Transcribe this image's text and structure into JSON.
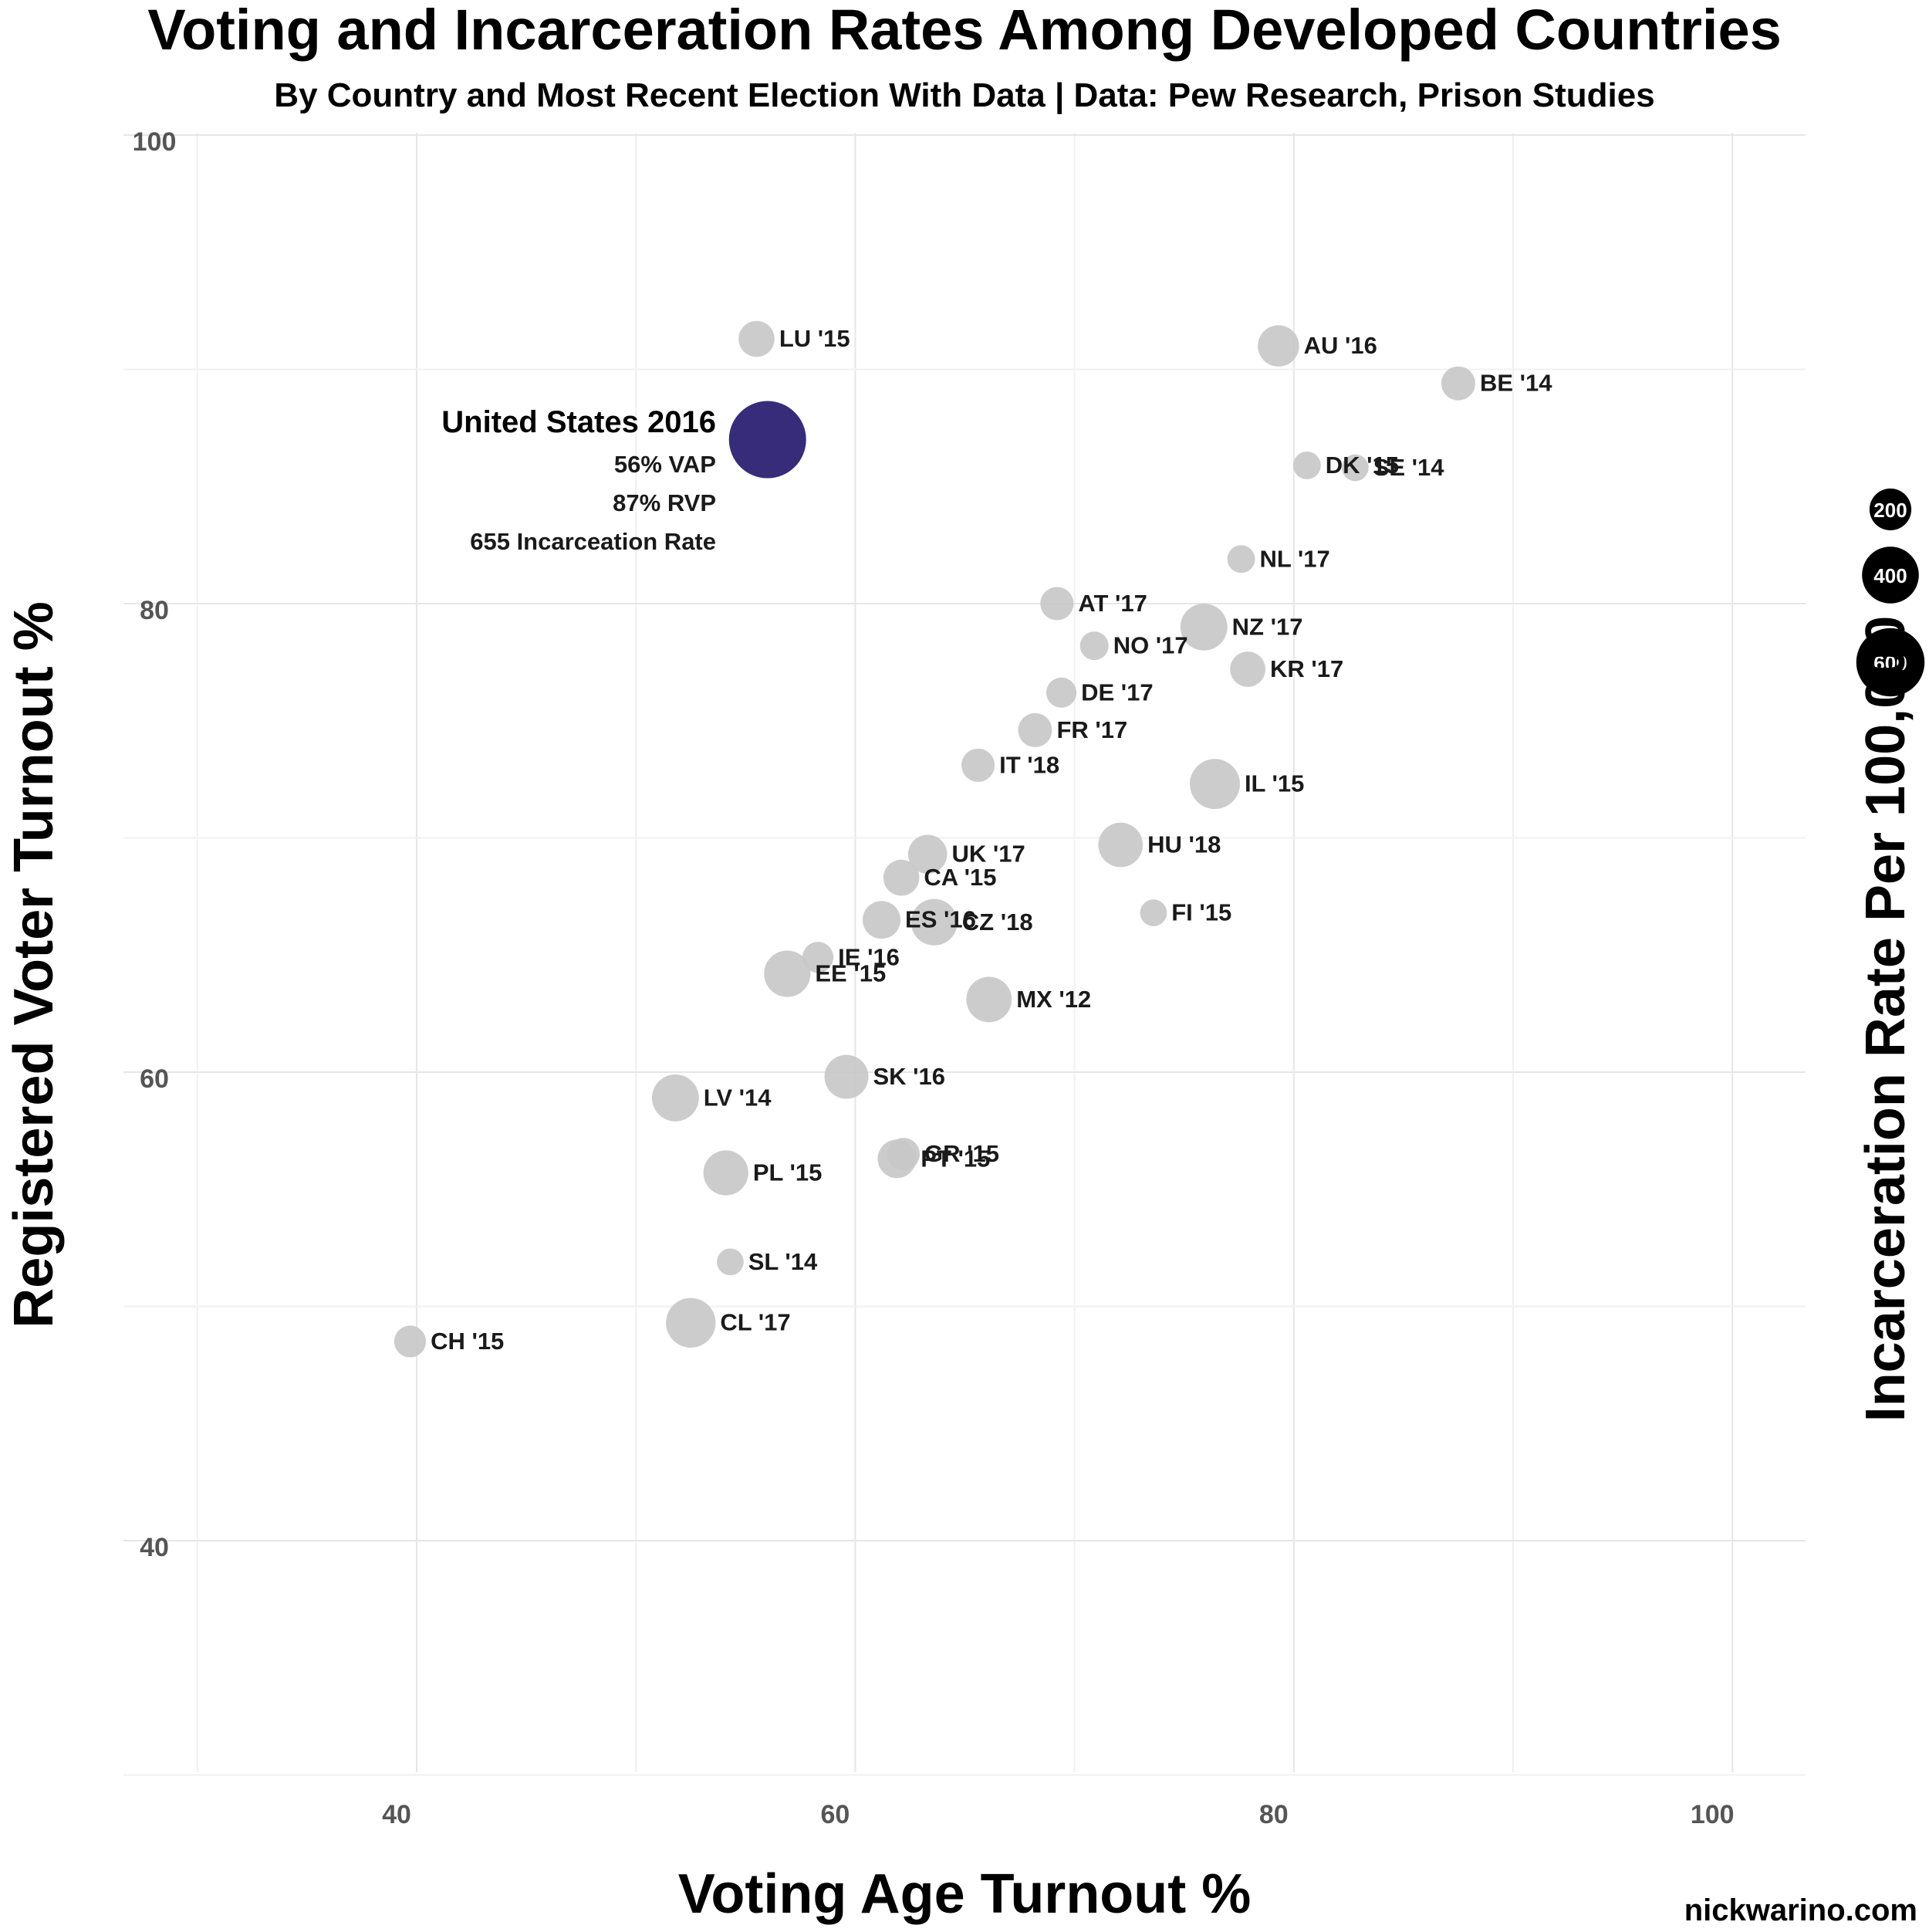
{
  "chart_data": {
    "type": "scatter",
    "title": "Voting and Incarceration Rates Among Developed Countries",
    "subtitle": "By Country and Most Recent Election With Data | Data: Pew Research, Prison Studies",
    "xlabel": "Voting Age Turnout %",
    "ylabel": "Registered Voter Turnout %",
    "size_label": "Incarceration Rate Per 100,000",
    "xlim": [
      30,
      103
    ],
    "ylim": [
      30,
      101
    ],
    "x_ticks": [
      40,
      60,
      80,
      100
    ],
    "y_ticks": [
      40,
      60,
      80,
      100
    ],
    "grid": true,
    "points": [
      {
        "label": "LU '15",
        "x": 55.5,
        "y": 91.3,
        "rate": 115
      },
      {
        "label": "AU '16",
        "x": 79.3,
        "y": 91.0,
        "rate": 160
      },
      {
        "label": "BE '14",
        "x": 87.5,
        "y": 89.4,
        "rate": 100
      },
      {
        "label": "DK '15",
        "x": 80.6,
        "y": 85.9,
        "rate": 60
      },
      {
        "label": "SE '14",
        "x": 82.8,
        "y": 85.8,
        "rate": 55
      },
      {
        "label": "NL '17",
        "x": 77.6,
        "y": 81.9,
        "rate": 60
      },
      {
        "label": "AT '17",
        "x": 69.2,
        "y": 80.0,
        "rate": 95
      },
      {
        "label": "NO '17",
        "x": 70.9,
        "y": 78.2,
        "rate": 65
      },
      {
        "label": "NZ '17",
        "x": 75.9,
        "y": 79.0,
        "rate": 215
      },
      {
        "label": "KR '17",
        "x": 77.9,
        "y": 77.2,
        "rate": 110
      },
      {
        "label": "DE '17",
        "x": 69.4,
        "y": 76.2,
        "rate": 75
      },
      {
        "label": "FR '17",
        "x": 68.2,
        "y": 74.6,
        "rate": 100
      },
      {
        "label": "IT '18",
        "x": 65.6,
        "y": 73.1,
        "rate": 95
      },
      {
        "label": "IL '15",
        "x": 76.4,
        "y": 72.3,
        "rate": 250
      },
      {
        "label": "HU '18",
        "x": 72.1,
        "y": 69.7,
        "rate": 190
      },
      {
        "label": "UK '17",
        "x": 63.3,
        "y": 69.3,
        "rate": 140
      },
      {
        "label": "CA '15",
        "x": 62.1,
        "y": 68.3,
        "rate": 115
      },
      {
        "label": "ES '16",
        "x": 61.2,
        "y": 66.5,
        "rate": 130
      },
      {
        "label": "CZ '18",
        "x": 63.6,
        "y": 66.4,
        "rate": 210
      },
      {
        "label": "FI '15",
        "x": 73.6,
        "y": 66.8,
        "rate": 55
      },
      {
        "label": "IE '16",
        "x": 58.3,
        "y": 64.9,
        "rate": 80
      },
      {
        "label": "EE '15",
        "x": 56.9,
        "y": 64.2,
        "rate": 210
      },
      {
        "label": "MX '12",
        "x": 66.1,
        "y": 63.1,
        "rate": 200
      },
      {
        "label": "SK '16",
        "x": 59.6,
        "y": 59.8,
        "rate": 185
      },
      {
        "label": "LV '14",
        "x": 51.8,
        "y": 58.9,
        "rate": 215
      },
      {
        "label": "GR '15",
        "x": 62.2,
        "y": 56.5,
        "rate": 90
      },
      {
        "label": "PT '15",
        "x": 61.9,
        "y": 56.3,
        "rate": 135
      },
      {
        "label": "PL '15",
        "x": 54.1,
        "y": 55.7,
        "rate": 195
      },
      {
        "label": "SL '14",
        "x": 54.3,
        "y": 51.9,
        "rate": 55
      },
      {
        "label": "CL '17",
        "x": 52.5,
        "y": 49.3,
        "rate": 245
      },
      {
        "label": "CH '15",
        "x": 39.7,
        "y": 48.5,
        "rate": 85
      }
    ],
    "highlight": {
      "label": "United States 2016",
      "x": 56,
      "y": 87,
      "rate": 655,
      "lines": [
        "56% VAP",
        "87% RVP",
        "655 Incarceation Rate"
      ],
      "color": "#372c7a"
    },
    "legend_sizes": [
      200,
      400,
      600
    ],
    "point_color": "#c8c8c8",
    "credit": "nickwarino.com"
  }
}
